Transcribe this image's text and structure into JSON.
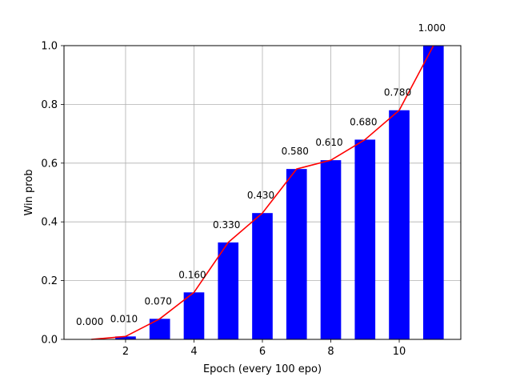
{
  "chart_data": {
    "type": "bar",
    "x": [
      1,
      2,
      3,
      4,
      5,
      6,
      7,
      8,
      9,
      10,
      11
    ],
    "values": [
      0.0,
      0.01,
      0.07,
      0.16,
      0.33,
      0.43,
      0.58,
      0.61,
      0.68,
      0.78,
      1.0
    ],
    "data_labels": [
      "0.000",
      "0.010",
      "0.070",
      "0.160",
      "0.330",
      "0.430",
      "0.580",
      "0.610",
      "0.680",
      "0.780",
      "1.000"
    ],
    "overlay_line": {
      "type": "line",
      "color": "#ff0000"
    },
    "bar_color": "#0000ff",
    "title": "",
    "xlabel": "Epoch (every 100 epo)",
    "ylabel": "Win prob",
    "xlim": [
      0.2,
      11.8
    ],
    "ylim": [
      0,
      1.0
    ],
    "xticks": [
      2,
      4,
      6,
      8,
      10
    ],
    "xtick_labels": [
      "2",
      "4",
      "6",
      "8",
      "10"
    ],
    "yticks": [
      0.0,
      0.2,
      0.4,
      0.6,
      0.8,
      1.0
    ],
    "ytick_labels": [
      "0.0",
      "0.2",
      "0.4",
      "0.6",
      "0.8",
      "1.0"
    ],
    "grid": true
  }
}
